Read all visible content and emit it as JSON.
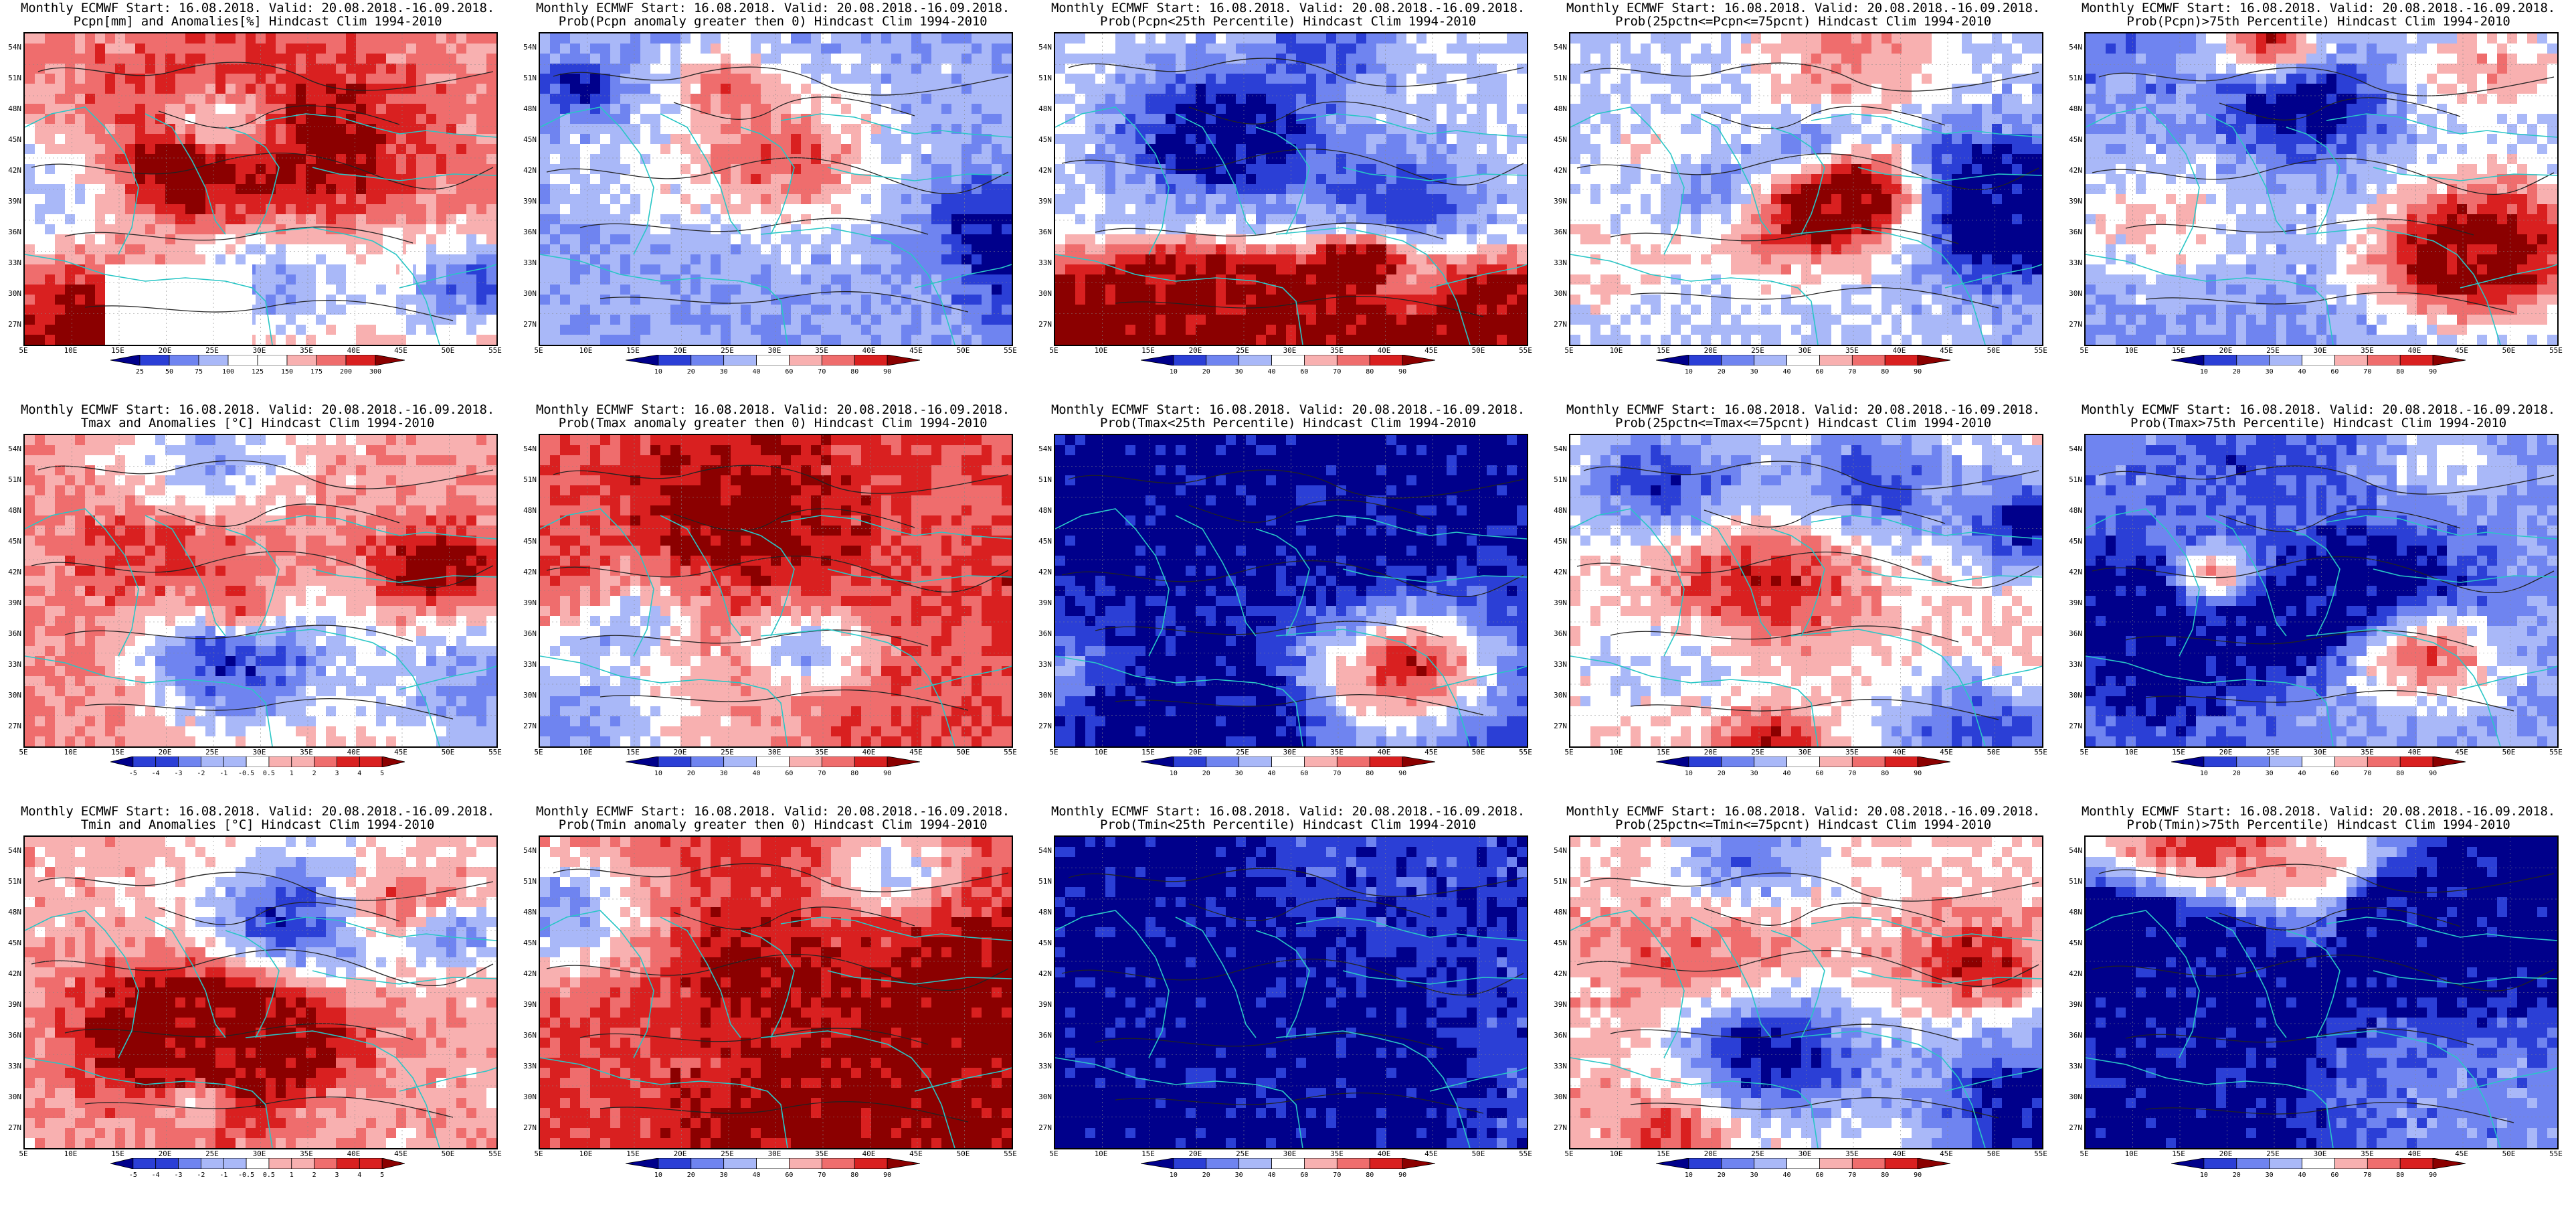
{
  "x_ticks": [
    "5E",
    "10E",
    "15E",
    "20E",
    "25E",
    "30E",
    "35E",
    "40E",
    "45E",
    "50E",
    "55E"
  ],
  "y_ticks": [
    "54N",
    "51N",
    "48N",
    "45N",
    "42N",
    "39N",
    "36N",
    "33N",
    "30N",
    "27N"
  ],
  "colors": {
    "sequence_9": [
      "#00008b",
      "#2b3fd6",
      "#6f84f0",
      "#a9b8f8",
      "#ffffff",
      "#f8b0b0",
      "#ef6d6d",
      "#d92020",
      "#8b0000"
    ],
    "coast": "#29c6c6",
    "contour": "#222222"
  },
  "colorbars": {
    "precip": [
      "25",
      "50",
      "75",
      "100",
      "125",
      "150",
      "175",
      "200",
      "300"
    ],
    "prob": [
      "10",
      "20",
      "30",
      "40",
      "60",
      "70",
      "80",
      "90"
    ],
    "temp": [
      "-5",
      "-4",
      "-3",
      "-2",
      "-1",
      "-0.5",
      "0.5",
      "1",
      "2",
      "3",
      "4",
      "5"
    ]
  },
  "panels": [
    {
      "title1": "Monthly ECMWF Start: 16.08.2018. Valid: 20.08.2018.-16.09.2018.",
      "title2": "Pcpn[mm] and Anomalies[%] Hindcast Clim 1994-2010",
      "colorbar": "precip",
      "has_colorbar": true,
      "bias": 0.4,
      "seed": 1,
      "has_blanks": true
    },
    {
      "title1": "Monthly ECMWF Start: 16.08.2018. Valid: 20.08.2018.-16.09.2018.",
      "title2": "Prob(Pcpn anomaly greater then 0) Hindcast Clim 1994-2010",
      "colorbar": "prob",
      "has_colorbar": true,
      "bias": -0.3,
      "seed": 2
    },
    {
      "title1": "Monthly ECMWF Start: 16.08.2018. Valid: 20.08.2018.-16.09.2018.",
      "title2": "Prob(Pcpn<25th Percentile) Hindcast Clim 1994-2010",
      "colorbar": "prob",
      "has_colorbar": true,
      "bias": -0.1,
      "seed": 3,
      "south_red": true
    },
    {
      "title1": "Monthly ECMWF Start: 16.08.2018. Valid: 20.08.2018.-16.09.2018.",
      "title2": "Prob(25pctn<=Pcpn<=75pcnt) Hindcast Clim 1994-2010",
      "colorbar": "prob",
      "has_colorbar": true,
      "bias": -0.2,
      "seed": 4
    },
    {
      "title1": "Monthly ECMWF Start: 16.08.2018. Valid: 20.08.2018.-16.09.2018.",
      "title2": "Prob(Pcpn)>75th Percentile) Hindcast Clim 1994-2010",
      "colorbar": "prob",
      "has_colorbar": true,
      "bias": -0.5,
      "seed": 5
    },
    {
      "title1": "Monthly ECMWF Start: 16.08.2018. Valid: 20.08.2018.-16.09.2018.",
      "title2": "Tmax and Anomalies [°C] Hindcast Clim 1994-2010",
      "colorbar": "temp",
      "has_colorbar": true,
      "bias": 0.3,
      "seed": 6
    },
    {
      "title1": "Monthly ECMWF Start: 16.08.2018. Valid: 20.08.2018.-16.09.2018.",
      "title2": "Prob(Tmax anomaly greater then 0) Hindcast Clim 1994-2010",
      "colorbar": "prob",
      "has_colorbar": true,
      "bias": 0.6,
      "seed": 7
    },
    {
      "title1": "Monthly ECMWF Start: 16.08.2018. Valid: 20.08.2018.-16.09.2018.",
      "title2": "Prob(Tmax<25th Percentile) Hindcast Clim 1994-2010",
      "colorbar": "prob",
      "has_colorbar": true,
      "bias": -0.8,
      "seed": 8
    },
    {
      "title1": "Monthly ECMWF Start: 16.08.2018. Valid: 20.08.2018.-16.09.2018.",
      "title2": "Prob(25pctn<=Tmax<=75pcnt) Hindcast Clim 1994-2010",
      "colorbar": "prob",
      "has_colorbar": true,
      "bias": 0.1,
      "seed": 9
    },
    {
      "title1": "Monthly ECMWF Start: 16.08.2018. Valid: 20.08.2018.-16.09.2018.",
      "title2": "Prob(Tmax>75th Percentile) Hindcast Clim 1994-2010",
      "colorbar": "prob",
      "has_colorbar": true,
      "bias": -0.4,
      "seed": 10
    },
    {
      "title1": "Monthly ECMWF Start: 16.08.2018. Valid: 20.08.2018.-16.09.2018.",
      "title2": "Tmin and Anomalies [°C] Hindcast Clim 1994-2010",
      "colorbar": "temp",
      "has_colorbar": true,
      "bias": 0.25,
      "seed": 11
    },
    {
      "title1": "Monthly ECMWF Start: 16.08.2018. Valid: 20.08.2018.-16.09.2018.",
      "title2": "Prob(Tmin anomaly greater then 0) Hindcast Clim 1994-2010",
      "colorbar": "prob",
      "has_colorbar": true,
      "bias": 0.7,
      "seed": 12
    },
    {
      "title1": "Monthly ECMWF Start: 16.08.2018. Valid: 20.08.2018.-16.09.2018.",
      "title2": "Prob(Tmin<25th Percentile) Hindcast Clim 1994-2010",
      "colorbar": "prob",
      "has_colorbar": true,
      "bias": -0.75,
      "seed": 13
    },
    {
      "title1": "Monthly ECMWF Start: 16.08.2018. Valid: 20.08.2018.-16.09.2018.",
      "title2": "Prob(25pctn<=Tmin<=75pcnt) Hindcast Clim 1994-2010",
      "colorbar": "prob",
      "has_colorbar": true,
      "bias": 0.15,
      "seed": 14
    },
    {
      "title1": "Monthly ECMWF Start: 16.08.2018. Valid: 20.08.2018.-16.09.2018.",
      "title2": "Prob(Tmin)>75th Percentile) Hindcast Clim 1994-2010",
      "colorbar": "prob",
      "has_colorbar": true,
      "bias": -0.45,
      "seed": 15
    }
  ]
}
